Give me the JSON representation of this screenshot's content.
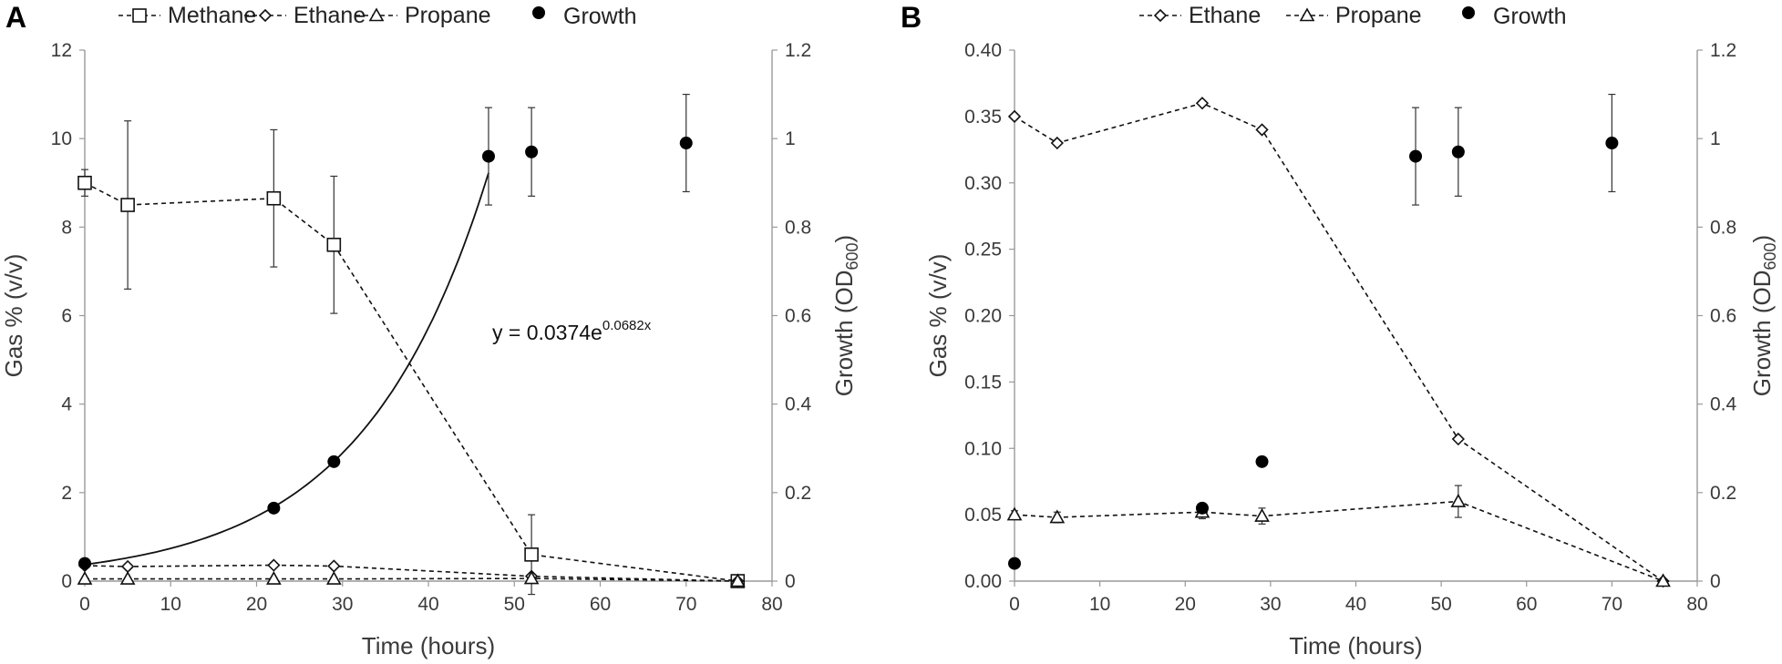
{
  "chart_data": [
    {
      "type": "line",
      "panel": "A",
      "xlabel": "Time (hours)",
      "ylabel_left": "Gas % (v/v)",
      "ylabel_right_main": "Growth (OD",
      "ylabel_right_sub": "600",
      "ylabel_right_close": ")",
      "xlim": [
        0,
        80
      ],
      "ylim_left": [
        0,
        12
      ],
      "ylim_right": [
        0,
        1.2
      ],
      "x_ticks": [
        "0",
        "10",
        "20",
        "30",
        "40",
        "50",
        "60",
        "70",
        "80"
      ],
      "y_left_ticks": [
        "0",
        "2",
        "4",
        "6",
        "8",
        "10",
        "12"
      ],
      "y_right_ticks": [
        "0",
        "0.2",
        "0.4",
        "0.6",
        "0.8",
        "1",
        "1.2"
      ],
      "legend": [
        "Methane",
        "Ethane",
        "Propane",
        "Growth"
      ],
      "series": [
        {
          "name": "Methane",
          "axis": "left",
          "marker": "square",
          "x": [
            0,
            5,
            22,
            29,
            52,
            76
          ],
          "y": [
            9.0,
            8.5,
            8.65,
            7.6,
            0.6,
            0.0
          ],
          "err": [
            0.3,
            1.9,
            1.55,
            1.55,
            0.9,
            0.05
          ]
        },
        {
          "name": "Ethane",
          "axis": "left",
          "marker": "diamond",
          "x": [
            0,
            5,
            22,
            29,
            52,
            76
          ],
          "y": [
            0.35,
            0.33,
            0.36,
            0.34,
            0.11,
            0.0
          ],
          "err": [
            0,
            0,
            0,
            0,
            0,
            0
          ]
        },
        {
          "name": "Propane",
          "axis": "left",
          "marker": "triangle",
          "x": [
            0,
            5,
            22,
            29,
            52,
            76
          ],
          "y": [
            0.05,
            0.05,
            0.05,
            0.05,
            0.06,
            0.0
          ],
          "err": [
            0,
            0,
            0,
            0,
            0,
            0
          ]
        },
        {
          "name": "Growth",
          "axis": "right",
          "marker": "dot",
          "x": [
            0,
            22,
            29,
            47,
            52,
            70
          ],
          "y": [
            0.04,
            0.165,
            0.27,
            0.96,
            0.97,
            0.99
          ],
          "err": [
            0,
            0,
            0,
            0.11,
            0.1,
            0.11
          ]
        }
      ],
      "fit": {
        "label": "Growth fit",
        "a": 0.0374,
        "b": 0.0682,
        "x_from": 0,
        "x_to": 47,
        "eq_prefix": "y = 0.0374e",
        "eq_exp": "0.0682x"
      }
    },
    {
      "type": "line",
      "panel": "B",
      "xlabel": "Time (hours)",
      "ylabel_left": "Gas % (v/v)",
      "ylabel_right_main": "Growth (OD",
      "ylabel_right_sub": "600",
      "ylabel_right_close": ")",
      "xlim": [
        0,
        80
      ],
      "ylim_left": [
        0,
        0.4
      ],
      "ylim_right": [
        0,
        1.2
      ],
      "x_ticks": [
        "0",
        "10",
        "20",
        "30",
        "40",
        "50",
        "60",
        "70",
        "80"
      ],
      "y_left_ticks": [
        "0.00",
        "0.05",
        "0.10",
        "0.15",
        "0.20",
        "0.25",
        "0.30",
        "0.35",
        "0.40"
      ],
      "y_right_ticks": [
        "0",
        "0.2",
        "0.4",
        "0.6",
        "0.8",
        "1",
        "1.2"
      ],
      "legend": [
        "Ethane",
        "Propane",
        "Growth"
      ],
      "series": [
        {
          "name": "Ethane",
          "axis": "left",
          "marker": "diamond",
          "x": [
            0,
            5,
            22,
            29,
            52,
            76
          ],
          "y": [
            0.35,
            0.33,
            0.36,
            0.34,
            0.107,
            0.0
          ],
          "err": [
            0,
            0,
            0,
            0,
            0,
            0
          ]
        },
        {
          "name": "Propane",
          "axis": "left",
          "marker": "triangle",
          "x": [
            0,
            5,
            22,
            29,
            52,
            76
          ],
          "y": [
            0.05,
            0.048,
            0.052,
            0.049,
            0.06,
            0.0
          ],
          "err": [
            0.003,
            0.004,
            0.005,
            0.006,
            0.012,
            0.002
          ]
        },
        {
          "name": "Growth",
          "axis": "right",
          "marker": "dot",
          "x": [
            0,
            22,
            29,
            47,
            52,
            70
          ],
          "y": [
            0.04,
            0.165,
            0.27,
            0.96,
            0.97,
            0.99
          ],
          "err": [
            0,
            0,
            0,
            0.11,
            0.1,
            0.11
          ]
        }
      ]
    }
  ]
}
